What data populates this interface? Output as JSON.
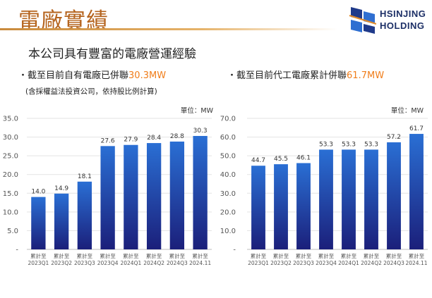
{
  "header": {
    "title": "電廠實績",
    "subtitle": "本公司具有豐富的電廠營運經驗",
    "logo_text_line1": "HSINJING",
    "logo_text_line2": "HOLDING"
  },
  "left_section": {
    "bullet": "・",
    "heading": "截至目前自有電廠已併聯",
    "highlight": "30.3MW",
    "note": "(含採權益法投資公司，依持股比例計算)"
  },
  "right_section": {
    "bullet": "・",
    "heading": "截至目前代工電廠累計併聯",
    "highlight": "61.7MW"
  },
  "colors": {
    "bar_top": "#2a6fd4",
    "bar_bottom": "#1b1f7a",
    "title": "#b5641e",
    "highlight": "#f07d1a"
  },
  "chart_data": [
    {
      "type": "bar",
      "unit_label": "單位：MW",
      "categories": [
        {
          "line1": "累計至",
          "line2": "2023Q1"
        },
        {
          "line1": "累計至",
          "line2": "2023Q2"
        },
        {
          "line1": "累計至",
          "line2": "2023Q3"
        },
        {
          "line1": "累計至",
          "line2": "2023Q4"
        },
        {
          "line1": "累計至",
          "line2": "2024Q1"
        },
        {
          "line1": "累計至",
          "line2": "2024Q2"
        },
        {
          "line1": "累計至",
          "line2": "2024Q3"
        },
        {
          "line1": "累計至",
          "line2": "2024.11"
        }
      ],
      "values": [
        14.0,
        14.9,
        18.1,
        27.6,
        27.9,
        28.4,
        28.8,
        30.3
      ],
      "value_labels": [
        "14.0",
        "14.9",
        "18.1",
        "27.6",
        "27.9",
        "28.4",
        "28.8",
        "30.3"
      ],
      "yticks": [
        "-",
        "5.0",
        "10.0",
        "15.0",
        "20.0",
        "25.0",
        "30.0",
        "35.0"
      ],
      "ylim": [
        0,
        35
      ],
      "grid": true
    },
    {
      "type": "bar",
      "unit_label": "單位：MW",
      "categories": [
        {
          "line1": "累計至",
          "line2": "2023Q1"
        },
        {
          "line1": "累計至",
          "line2": "2023Q2"
        },
        {
          "line1": "累計至",
          "line2": "2023Q3"
        },
        {
          "line1": "累計至",
          "line2": "2023Q4"
        },
        {
          "line1": "累計至",
          "line2": "2024Q1"
        },
        {
          "line1": "累計至",
          "line2": "2024Q2"
        },
        {
          "line1": "累計至",
          "line2": "2024Q3"
        },
        {
          "line1": "累計至",
          "line2": "2024.11"
        }
      ],
      "values": [
        44.7,
        45.5,
        46.1,
        53.3,
        53.3,
        53.3,
        57.2,
        61.7
      ],
      "value_labels": [
        "44.7",
        "45.5",
        "46.1",
        "53.3",
        "53.3",
        "53.3",
        "57.2",
        "61.7"
      ],
      "yticks": [
        "-",
        "10.0",
        "20.0",
        "30.0",
        "40.0",
        "50.0",
        "60.0",
        "70.0"
      ],
      "ylim": [
        0,
        70
      ],
      "grid": true
    }
  ]
}
